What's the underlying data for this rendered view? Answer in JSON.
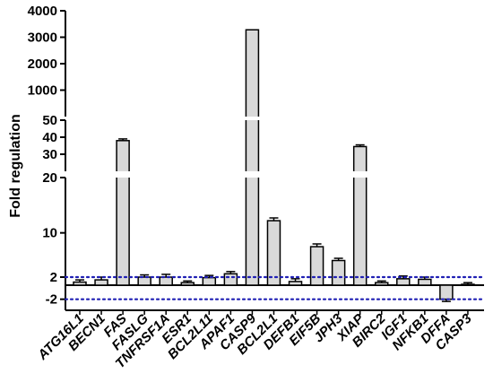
{
  "chart_data": {
    "type": "bar",
    "ylabel": "Fold regulation",
    "broken_axis": true,
    "y_segments": [
      {
        "range": [
          -4,
          20
        ],
        "ticks": [
          -2,
          2,
          10,
          20
        ]
      },
      {
        "range": [
          20,
          50
        ],
        "ticks": [
          30,
          40,
          50
        ]
      },
      {
        "range": [
          0,
          4000
        ],
        "ticks": [
          1000,
          2000,
          3000,
          4000
        ]
      }
    ],
    "categories": [
      "ATG16L1",
      "BECN1",
      "FAS",
      "FASLG",
      "TNFRSF1A",
      "ESR1",
      "BCL2L11",
      "APAF1",
      "CASP9",
      "BCL2L1",
      "DEFB1",
      "EIF5B",
      "JPH3",
      "XIAP",
      "BIRC2",
      "IGF1",
      "NFKB1",
      "DFFA",
      "CASP3"
    ],
    "values": [
      1.1,
      1.5,
      38,
      2.0,
      2.0,
      1.0,
      1.9,
      2.6,
      3280,
      12.2,
      1.2,
      7.5,
      5.0,
      34.5,
      1.0,
      1.7,
      1.6,
      -2.0,
      0.7
    ],
    "errors": [
      0.4,
      0.5,
      1.0,
      0.4,
      0.5,
      0.3,
      0.4,
      0.4,
      0,
      0.5,
      0.5,
      0.5,
      0.4,
      1.0,
      0.3,
      0.5,
      0.4,
      0.4,
      0.3
    ],
    "reference_lines": [
      2,
      -2
    ],
    "bar_color": "#d9d9d9",
    "reference_line_color": "#1f1fb4",
    "grid": false
  }
}
